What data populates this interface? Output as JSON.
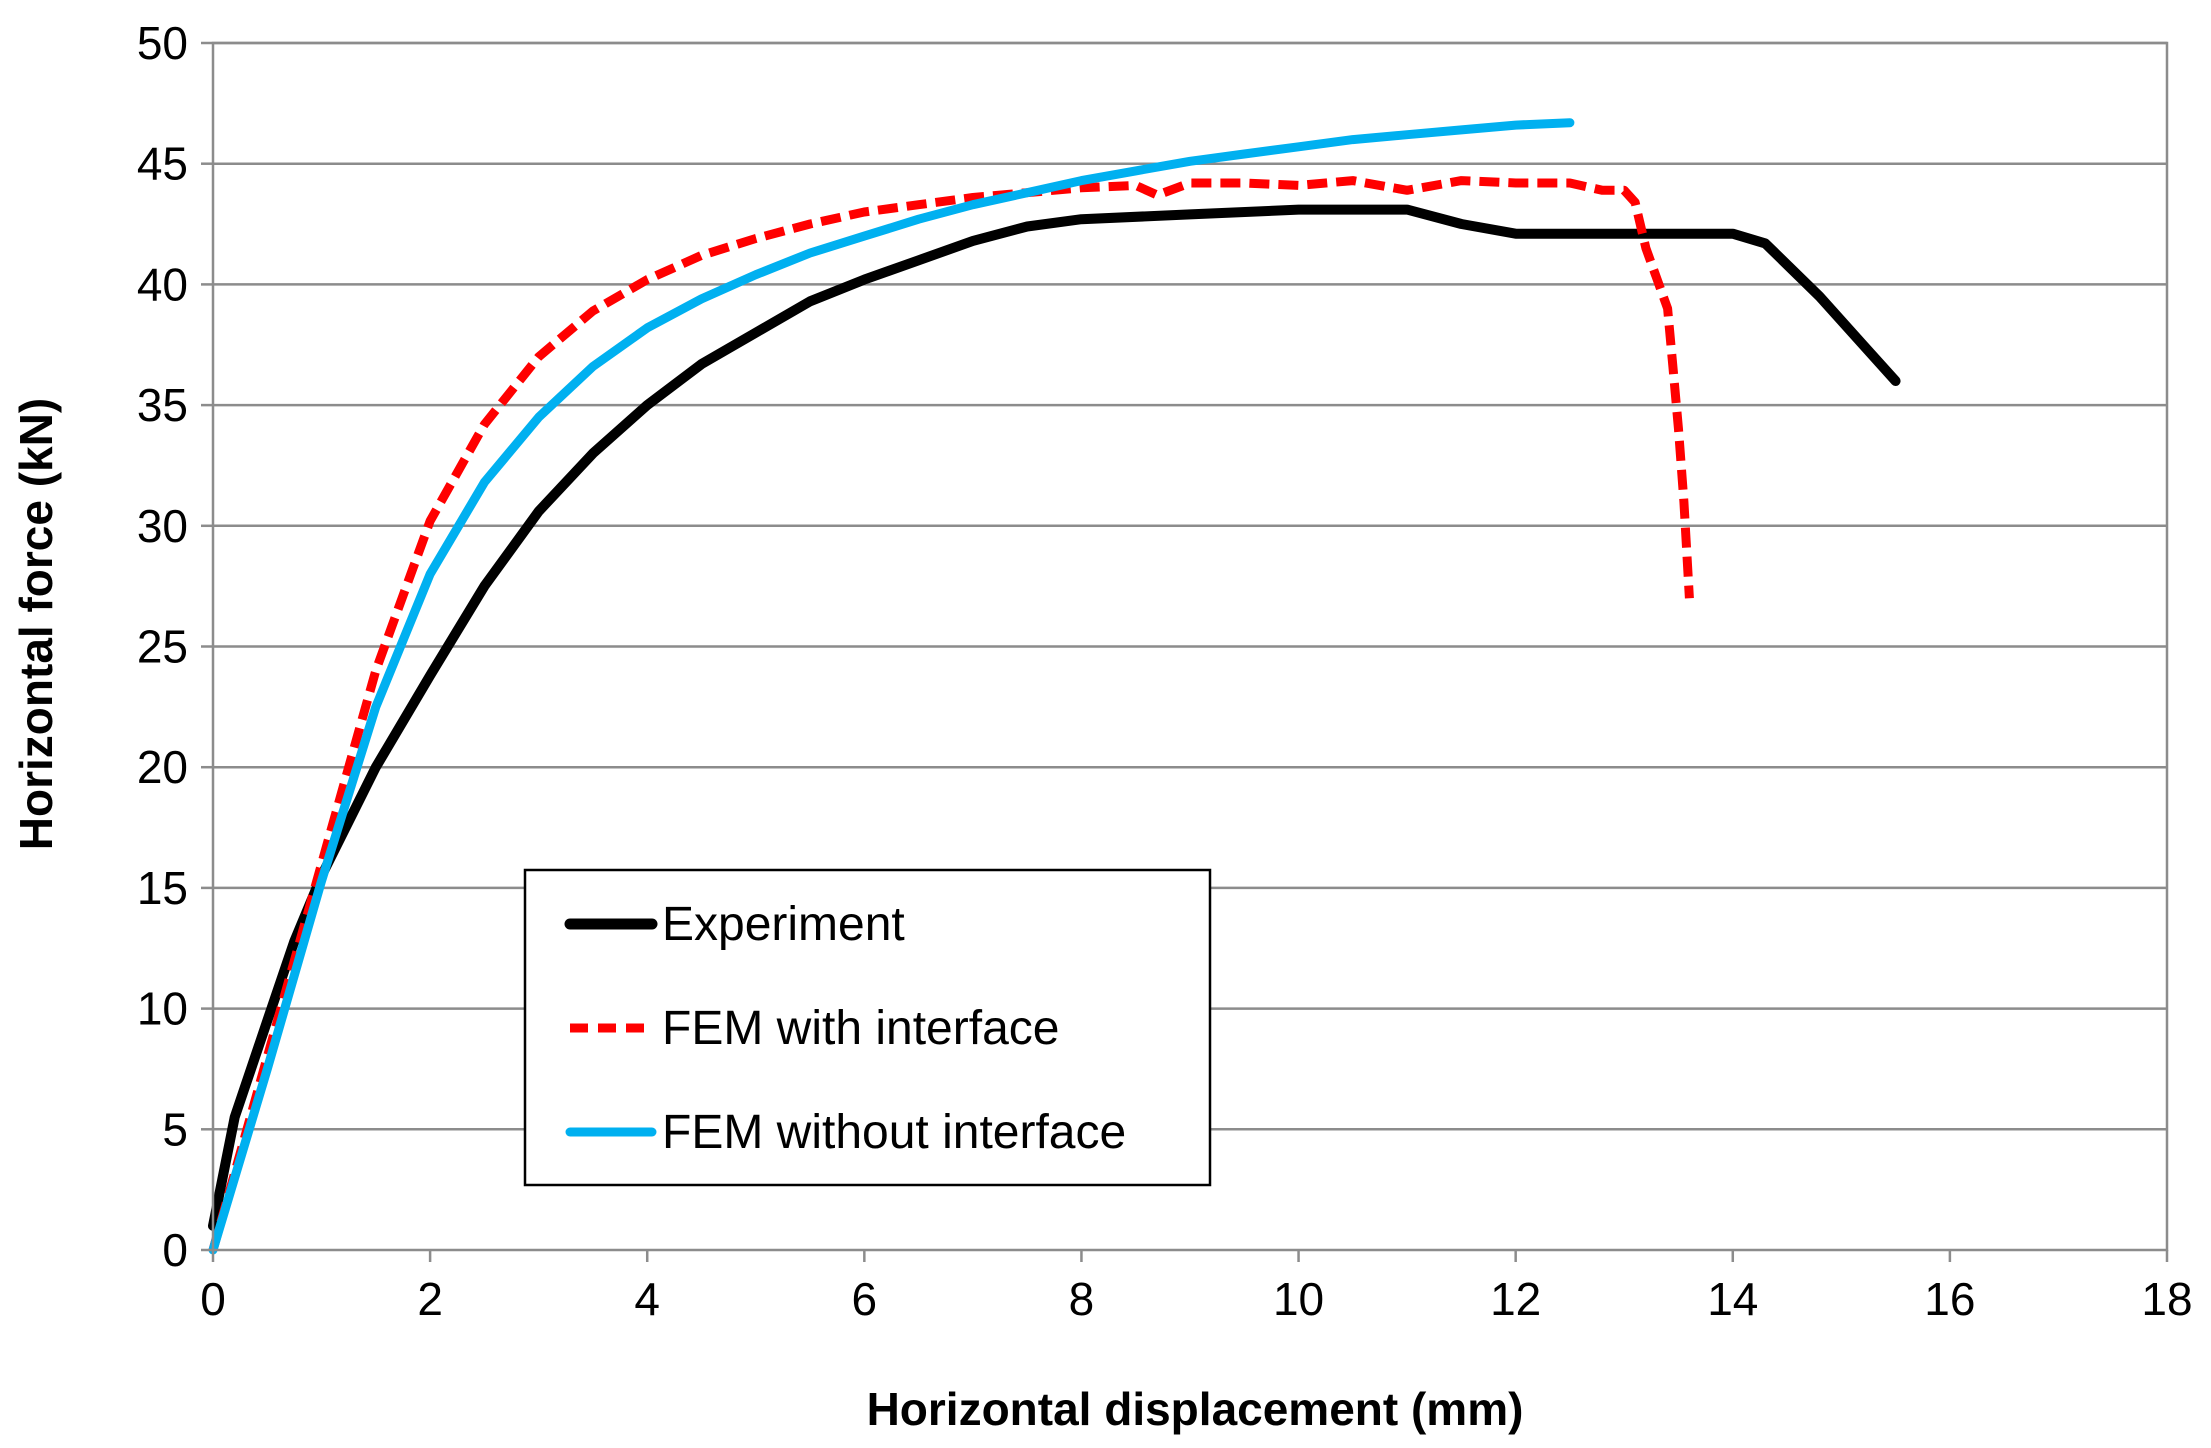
{
  "chart_data": {
    "type": "line",
    "title": "",
    "xlabel": "Horizontal displacement (mm)",
    "ylabel": "Horizontal force (kN)",
    "xlim": [
      0,
      18
    ],
    "ylim": [
      0,
      50
    ],
    "xticks": [
      0,
      2,
      4,
      6,
      8,
      10,
      12,
      14,
      16,
      18
    ],
    "yticks": [
      0,
      5,
      10,
      15,
      20,
      25,
      30,
      35,
      40,
      45,
      50
    ],
    "grid": "horizontal",
    "legend_position": "lower-center",
    "series": [
      {
        "name": "Experiment",
        "color": "#000000",
        "style": "solid",
        "points": [
          [
            0,
            1
          ],
          [
            0.2,
            5.5
          ],
          [
            0.5,
            9.5
          ],
          [
            0.75,
            12.8
          ],
          [
            1.0,
            15.5
          ],
          [
            1.5,
            20
          ],
          [
            2.0,
            23.8
          ],
          [
            2.5,
            27.5
          ],
          [
            3.0,
            30.6
          ],
          [
            3.5,
            33.0
          ],
          [
            4.0,
            35.0
          ],
          [
            4.5,
            36.7
          ],
          [
            5.0,
            38.0
          ],
          [
            5.5,
            39.3
          ],
          [
            6.0,
            40.2
          ],
          [
            6.5,
            41.0
          ],
          [
            7.0,
            41.8
          ],
          [
            7.5,
            42.4
          ],
          [
            8.0,
            42.7
          ],
          [
            9.0,
            42.9
          ],
          [
            10.0,
            43.1
          ],
          [
            11.0,
            43.1
          ],
          [
            11.5,
            42.5
          ],
          [
            12.0,
            42.1
          ],
          [
            13.0,
            42.1
          ],
          [
            14.0,
            42.1
          ],
          [
            14.3,
            41.7
          ],
          [
            14.8,
            39.5
          ],
          [
            15.2,
            37.5
          ],
          [
            15.5,
            36.0
          ]
        ]
      },
      {
        "name": "FEM with interface",
        "color": "#ff0000",
        "style": "dashed",
        "points": [
          [
            0,
            0
          ],
          [
            0.5,
            8
          ],
          [
            1.0,
            16
          ],
          [
            1.5,
            24
          ],
          [
            2.0,
            30.2
          ],
          [
            2.5,
            34.2
          ],
          [
            3.0,
            37.0
          ],
          [
            3.5,
            38.9
          ],
          [
            4.0,
            40.2
          ],
          [
            4.5,
            41.2
          ],
          [
            5.0,
            41.9
          ],
          [
            5.5,
            42.5
          ],
          [
            6.0,
            43.0
          ],
          [
            6.5,
            43.3
          ],
          [
            7.0,
            43.6
          ],
          [
            7.5,
            43.8
          ],
          [
            8.0,
            44.0
          ],
          [
            8.5,
            44.1
          ],
          [
            8.7,
            43.7
          ],
          [
            9.0,
            44.2
          ],
          [
            9.5,
            44.2
          ],
          [
            10.0,
            44.1
          ],
          [
            10.5,
            44.3
          ],
          [
            11.0,
            43.9
          ],
          [
            11.5,
            44.3
          ],
          [
            12.0,
            44.2
          ],
          [
            12.5,
            44.2
          ],
          [
            12.8,
            43.9
          ],
          [
            13.0,
            43.9
          ],
          [
            13.1,
            43.4
          ],
          [
            13.2,
            41.5
          ],
          [
            13.4,
            39.0
          ],
          [
            13.45,
            36.5
          ],
          [
            13.5,
            34.0
          ],
          [
            13.55,
            31.0
          ],
          [
            13.6,
            27.0
          ]
        ]
      },
      {
        "name": "FEM without interface",
        "color": "#00b0f0",
        "style": "solid",
        "points": [
          [
            0,
            0
          ],
          [
            0.5,
            7.5
          ],
          [
            1.0,
            15.3
          ],
          [
            1.5,
            22.5
          ],
          [
            2.0,
            28.0
          ],
          [
            2.5,
            31.8
          ],
          [
            3.0,
            34.5
          ],
          [
            3.5,
            36.6
          ],
          [
            4.0,
            38.2
          ],
          [
            4.5,
            39.4
          ],
          [
            5.0,
            40.4
          ],
          [
            5.5,
            41.3
          ],
          [
            6.0,
            42.0
          ],
          [
            6.5,
            42.7
          ],
          [
            7.0,
            43.3
          ],
          [
            7.5,
            43.8
          ],
          [
            8.0,
            44.3
          ],
          [
            8.5,
            44.7
          ],
          [
            9.0,
            45.1
          ],
          [
            9.5,
            45.4
          ],
          [
            10.0,
            45.7
          ],
          [
            10.5,
            46.0
          ],
          [
            11.0,
            46.2
          ],
          [
            11.5,
            46.4
          ],
          [
            12.0,
            46.6
          ],
          [
            12.5,
            46.7
          ]
        ]
      }
    ]
  }
}
